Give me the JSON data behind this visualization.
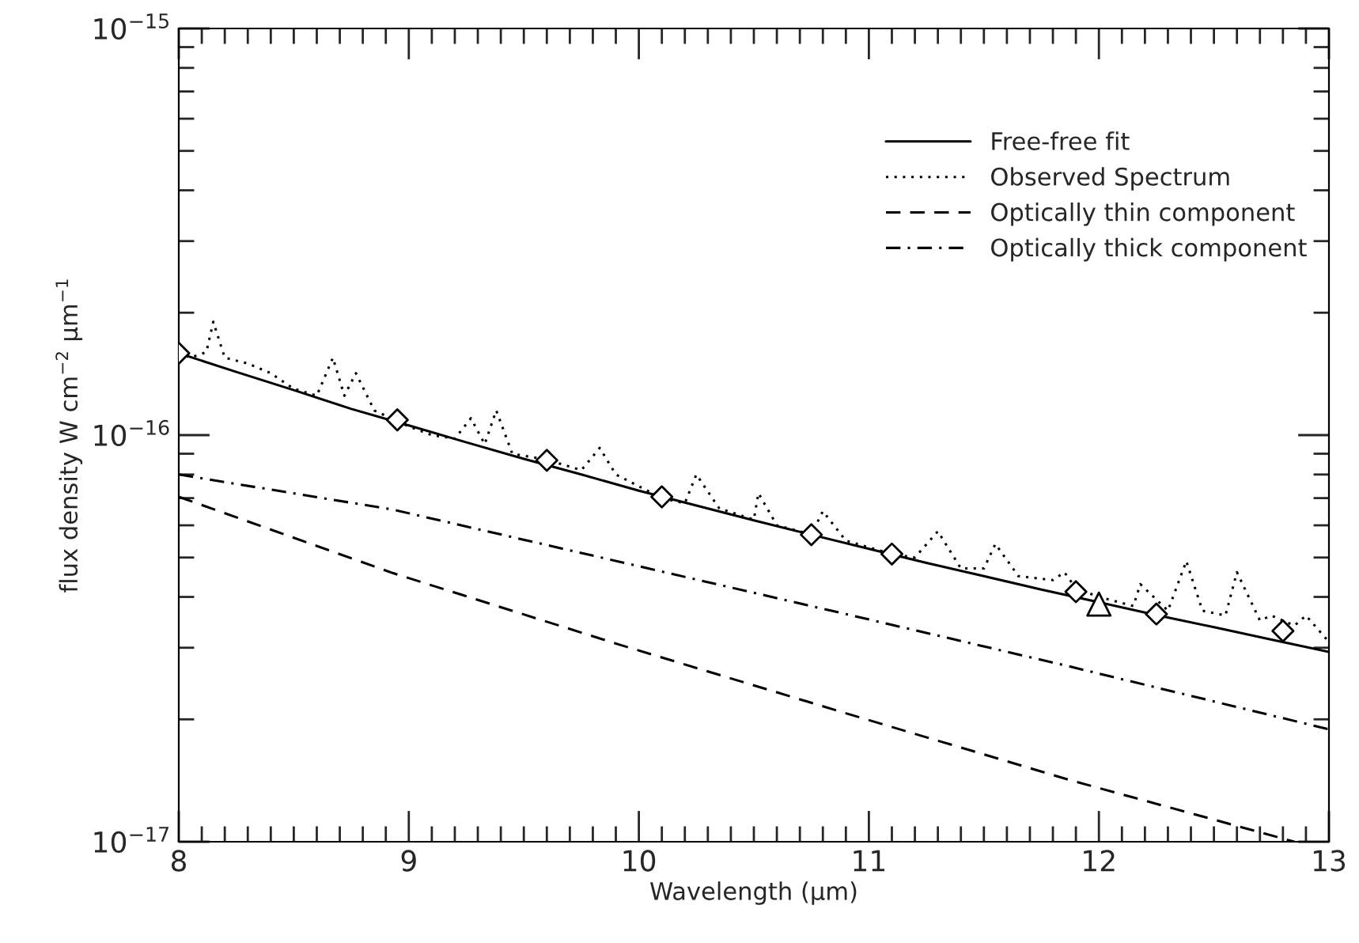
{
  "chart_data": {
    "type": "line",
    "xlabel": "Wavelength (μm)",
    "ylabel": "flux density W cm$^{−2}$ μm$^{−1}$",
    "log": "y",
    "xlim": [
      8,
      13
    ],
    "ylim": [
      1e-17,
      1e-15
    ],
    "xticks": [
      8,
      9,
      10,
      11,
      12,
      13
    ],
    "yticks": [
      {
        "value": 1e-17,
        "label": "10$^{−17}$"
      },
      {
        "value": 1e-16,
        "label": "10$^{−16}$"
      },
      {
        "value": 1e-15,
        "label": "10$^{−15}$"
      }
    ],
    "grid": false,
    "legend": "top right",
    "series": [
      {
        "name": "Free-free fit",
        "color": "#000000",
        "line_style": "solid",
        "x": [
          8,
          8.25,
          8.5,
          8.75,
          9,
          9.25,
          9.5,
          9.75,
          10,
          10.25,
          10.5,
          10.75,
          11,
          11.25,
          11.5,
          11.75,
          12,
          12.25,
          12.5,
          12.75,
          13
        ],
        "values": [
          1.59e-16,
          1.43e-16,
          1.29e-16,
          1.16e-16,
          1.056e-16,
          9.6e-17,
          8.74e-17,
          8e-17,
          7.3e-17,
          6.71e-17,
          6.17e-17,
          5.69e-17,
          5.25e-17,
          4.85e-17,
          4.5e-17,
          4.17e-17,
          3.88e-17,
          3.61e-17,
          3.37e-17,
          3.14e-17,
          2.93e-17
        ]
      },
      {
        "name": "Observed Spectrum",
        "color": "#000000",
        "line_style": "dotted",
        "x": [
          8.0,
          8.05,
          8.12,
          8.15,
          8.2,
          8.3,
          8.4,
          8.5,
          8.6,
          8.67,
          8.72,
          8.77,
          8.85,
          9.0,
          9.1,
          9.2,
          9.27,
          9.33,
          9.38,
          9.45,
          9.6,
          9.75,
          9.83,
          9.9,
          10.1,
          10.2,
          10.25,
          10.35,
          10.5,
          10.52,
          10.6,
          10.75,
          10.8,
          10.9,
          11.1,
          11.2,
          11.3,
          11.4,
          11.5,
          11.55,
          11.65,
          11.8,
          11.85,
          11.9,
          12.0,
          12.15,
          12.18,
          12.3,
          12.38,
          12.45,
          12.55,
          12.6,
          12.7,
          12.75,
          12.85,
          12.9,
          13.0
        ],
        "values": [
          1.6e-16,
          1.55e-16,
          1.6e-16,
          1.9e-16,
          1.55e-16,
          1.5e-16,
          1.42e-16,
          1.3e-16,
          1.25e-16,
          1.55e-16,
          1.25e-16,
          1.42e-16,
          1.15e-16,
          1.05e-16,
          1e-16,
          9.8e-17,
          1.1e-16,
          9.5e-17,
          1.15e-16,
          9e-17,
          8.7e-17,
          8.2e-17,
          9.3e-17,
          8e-17,
          7e-17,
          6.8e-17,
          8e-17,
          6.6e-17,
          6.2e-17,
          7.2e-17,
          6e-17,
          5.7e-17,
          6.5e-17,
          5.5e-17,
          5.1e-17,
          5e-17,
          5.8e-17,
          4.7e-17,
          4.7e-17,
          5.4e-17,
          4.5e-17,
          4.4e-17,
          4.6e-17,
          4.2e-17,
          4e-17,
          3.8e-17,
          4.3e-17,
          3.7e-17,
          4.9e-17,
          3.7e-17,
          3.6e-17,
          4.6e-17,
          3.5e-17,
          3.6e-17,
          3.4e-17,
          3.6e-17,
          3.1e-17
        ]
      },
      {
        "name": "Optically thin component",
        "color": "#000000",
        "line_style": "dashed",
        "x": [
          8,
          8.93,
          9.91,
          10.9,
          11.87,
          12.85
        ],
        "values": [
          7.05e-17,
          4.58e-17,
          3.06e-17,
          2.07e-17,
          1.42e-17,
          1e-17
        ]
      },
      {
        "name": "Optically thick component",
        "color": "#000000",
        "line_style": "dashdot",
        "x": [
          8,
          8.93,
          9.91,
          10.9,
          11.87,
          13
        ],
        "values": [
          8e-17,
          6.56e-17,
          4.89e-17,
          3.63e-17,
          2.7e-17,
          1.89e-17
        ]
      },
      {
        "type": "scatter",
        "marker": "diamond",
        "color": "#000000",
        "x": [
          8,
          8.95,
          9.6,
          10.1,
          10.75,
          11.1,
          11.9,
          12.25,
          12.8
        ],
        "values": [
          1.59e-16,
          1.09e-16,
          8.67e-17,
          7.05e-17,
          5.69e-17,
          5.1e-17,
          4.12e-17,
          3.63e-17,
          3.3e-17
        ]
      },
      {
        "type": "scatter",
        "marker": "triangle",
        "color": "#000000",
        "x": [
          12.0
        ],
        "values": [
          3.84e-17
        ]
      }
    ]
  }
}
